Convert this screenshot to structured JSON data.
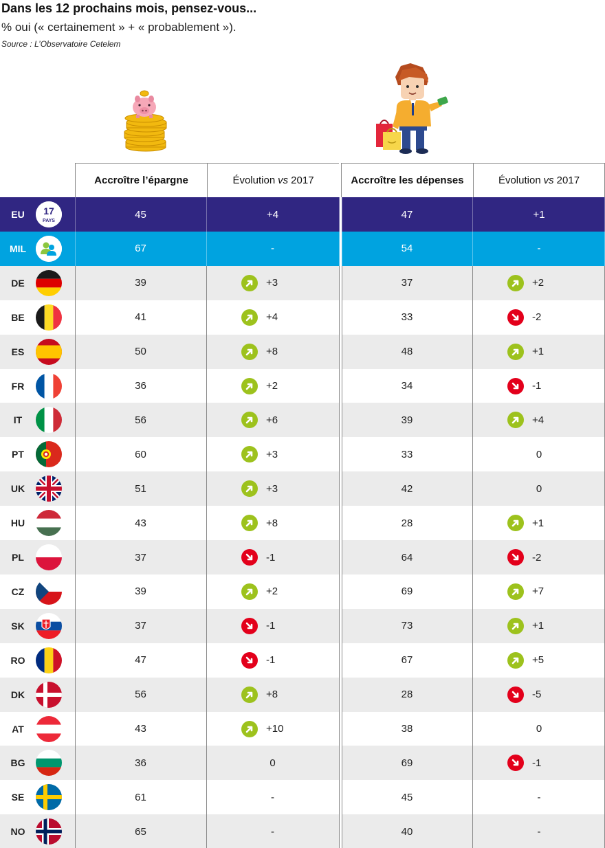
{
  "header": {
    "title": "Dans les 12 prochains mois, pensez-vous...",
    "subtitle": "% oui (« certainement » + « probablement »).",
    "source": "Source : L’Observatoire Cetelem"
  },
  "colors": {
    "eu_row": "#302682",
    "mil_row": "#00a3e0",
    "stripe": "#ebebeb",
    "up_arrow": "#9dc21d",
    "down_arrow": "#e3001b"
  },
  "chart_data": {
    "type": "table",
    "columns": [
      {
        "label": "Accroître l’épargne"
      },
      {
        "label_pre": "Évolution",
        "label_em": "vs",
        "label_post": "2017"
      },
      {
        "label": "Accroître les dépenses"
      },
      {
        "label_pre": "Évolution",
        "label_em": "vs",
        "label_post": "2017"
      }
    ],
    "eu_badge": {
      "number": "17",
      "text": "PAYS"
    },
    "rows": [
      {
        "code": "EU",
        "flag": "eu-badge",
        "epargne": 45,
        "evo_epargne": "+4",
        "depenses": 47,
        "evo_depenses": "+1"
      },
      {
        "code": "MIL",
        "flag": "millennials-icon",
        "epargne": 67,
        "evo_epargne": "-",
        "depenses": 54,
        "evo_depenses": "-"
      },
      {
        "code": "DE",
        "flag": "germany-flag",
        "epargne": 39,
        "evo_epargne": "+3",
        "depenses": 37,
        "evo_depenses": "+2"
      },
      {
        "code": "BE",
        "flag": "belgium-flag",
        "epargne": 41,
        "evo_epargne": "+4",
        "depenses": 33,
        "evo_depenses": "-2"
      },
      {
        "code": "ES",
        "flag": "spain-flag",
        "epargne": 50,
        "evo_epargne": "+8",
        "depenses": 48,
        "evo_depenses": "+1"
      },
      {
        "code": "FR",
        "flag": "france-flag",
        "epargne": 36,
        "evo_epargne": "+2",
        "depenses": 34,
        "evo_depenses": "-1"
      },
      {
        "code": "IT",
        "flag": "italy-flag",
        "epargne": 56,
        "evo_epargne": "+6",
        "depenses": 39,
        "evo_depenses": "+4"
      },
      {
        "code": "PT",
        "flag": "portugal-flag",
        "epargne": 60,
        "evo_epargne": "+3",
        "depenses": 33,
        "evo_depenses": "0"
      },
      {
        "code": "UK",
        "flag": "uk-flag",
        "epargne": 51,
        "evo_epargne": "+3",
        "depenses": 42,
        "evo_depenses": "0"
      },
      {
        "code": "HU",
        "flag": "hungary-flag",
        "epargne": 43,
        "evo_epargne": "+8",
        "depenses": 28,
        "evo_depenses": "+1"
      },
      {
        "code": "PL",
        "flag": "poland-flag",
        "epargne": 37,
        "evo_epargne": "-1",
        "depenses": 64,
        "evo_depenses": "-2"
      },
      {
        "code": "CZ",
        "flag": "czech-flag",
        "epargne": 39,
        "evo_epargne": "+2",
        "depenses": 69,
        "evo_depenses": "+7"
      },
      {
        "code": "SK",
        "flag": "slovakia-flag",
        "epargne": 37,
        "evo_epargne": "-1",
        "depenses": 73,
        "evo_depenses": "+1"
      },
      {
        "code": "RO",
        "flag": "romania-flag",
        "epargne": 47,
        "evo_epargne": "-1",
        "depenses": 67,
        "evo_depenses": "+5"
      },
      {
        "code": "DK",
        "flag": "denmark-flag",
        "epargne": 56,
        "evo_epargne": "+8",
        "depenses": 28,
        "evo_depenses": "-5"
      },
      {
        "code": "AT",
        "flag": "austria-flag",
        "epargne": 43,
        "evo_epargne": "+10",
        "depenses": 38,
        "evo_depenses": "0"
      },
      {
        "code": "BG",
        "flag": "bulgaria-flag",
        "epargne": 36,
        "evo_epargne": "0",
        "depenses": 69,
        "evo_depenses": "-1"
      },
      {
        "code": "SE",
        "flag": "sweden-flag",
        "epargne": 61,
        "evo_epargne": "-",
        "depenses": 45,
        "evo_depenses": "-"
      },
      {
        "code": "NO",
        "flag": "norway-flag",
        "epargne": 65,
        "evo_epargne": "-",
        "depenses": 40,
        "evo_depenses": "-"
      }
    ]
  }
}
